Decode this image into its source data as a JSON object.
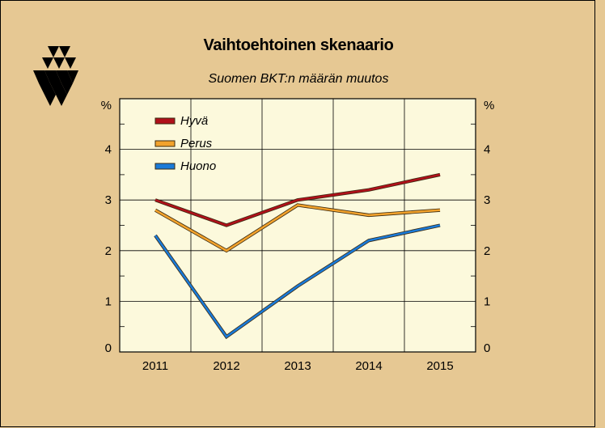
{
  "title": "Vaihtoehtoinen skenaario",
  "subtitle": "Suomen BKT:n määrän muutos",
  "colors": {
    "background": "#e6c893",
    "plot_background": "#fcf9dc",
    "hyva": "#b0101a",
    "perus": "#f2a22c",
    "huono": "#1a7ad8"
  },
  "chart_data": {
    "type": "line",
    "title": "Vaihtoehtoinen skenaario",
    "subtitle": "Suomen BKT:n määrän muutos",
    "categories": [
      "2011",
      "2012",
      "2013",
      "2014",
      "2015"
    ],
    "series": [
      {
        "name": "Hyvä",
        "values": [
          3.0,
          2.5,
          3.0,
          3.2,
          3.5
        ]
      },
      {
        "name": "Perus",
        "values": [
          2.8,
          2.0,
          2.9,
          2.7,
          2.8
        ]
      },
      {
        "name": "Huono",
        "values": [
          2.3,
          0.3,
          1.3,
          2.2,
          2.5
        ]
      }
    ],
    "ylabel_left": "%",
    "ylabel_right": "%",
    "ylim": [
      0,
      5
    ],
    "yticks": [
      "0",
      "1",
      "2",
      "3",
      "4"
    ],
    "grid": true,
    "legend_position": "top-left"
  }
}
